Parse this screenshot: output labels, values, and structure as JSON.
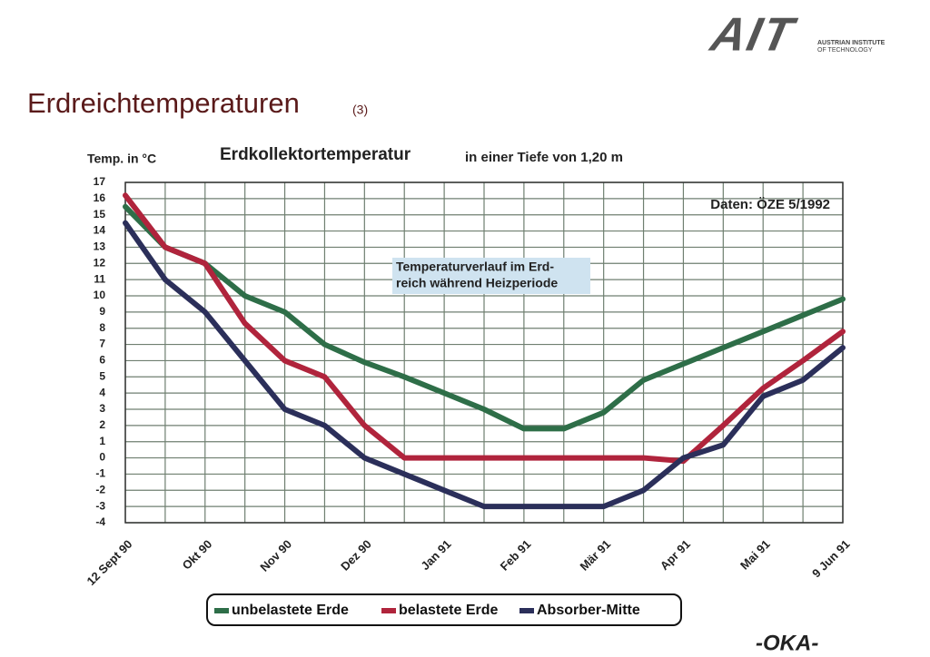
{
  "logo": {
    "mark": "AIT",
    "lines": [
      "AUSTRIAN INSTITUTE",
      "OF TECHNOLOGY"
    ]
  },
  "slide_title": "Erdreichtemperaturen",
  "slide_number": "(3)",
  "footer_logo": "-OKA-",
  "chart_data": {
    "type": "line",
    "title": "Erdkollektortemperatur",
    "subtitle": "in einer Tiefe von 1,20 m",
    "y_label": "Temp. in °C",
    "annotations": [
      "Daten: ÖZE 5/1992",
      "Temperaturverlauf im Erd-",
      "reich während Heizperiode"
    ],
    "categories": [
      "12 Sept 90",
      null,
      "Okt 90",
      null,
      "Nov 90",
      null,
      "Dez 90",
      null,
      "Jan 91",
      null,
      "Feb 91",
      null,
      "Mär 91",
      null,
      "Apr 91",
      null,
      "Mai 91",
      null,
      "9 Jun 91"
    ],
    "series": [
      {
        "name": "unbelastete Erde",
        "color": "#2e6e48",
        "values": [
          15.5,
          13,
          12,
          10,
          9,
          7,
          5.9,
          5,
          4,
          3,
          1.8,
          1.8,
          2.8,
          4.8,
          5.8,
          6.8,
          7.8,
          8.8,
          9.8
        ]
      },
      {
        "name": "belastete Erde",
        "color": "#b0243c",
        "values": [
          16.2,
          13,
          12,
          8.3,
          6,
          5,
          2,
          0,
          0,
          0,
          0,
          0,
          0,
          0,
          -0.2,
          2,
          4.3,
          6,
          7.8
        ]
      },
      {
        "name": "Absorber-Mitte",
        "color": "#2b2f5a",
        "values": [
          14.5,
          11,
          9,
          6,
          3,
          2,
          0,
          -1,
          -2,
          -3,
          -3,
          -3,
          -3,
          -2,
          0,
          0.8,
          3.8,
          4.8,
          6.8
        ]
      }
    ],
    "ylim": [
      -4,
      17
    ],
    "yticks": [
      -4,
      -3,
      -2,
      -1,
      0,
      1,
      2,
      3,
      4,
      5,
      6,
      7,
      8,
      9,
      10,
      11,
      12,
      13,
      14,
      15,
      16,
      17
    ],
    "grid": true
  }
}
